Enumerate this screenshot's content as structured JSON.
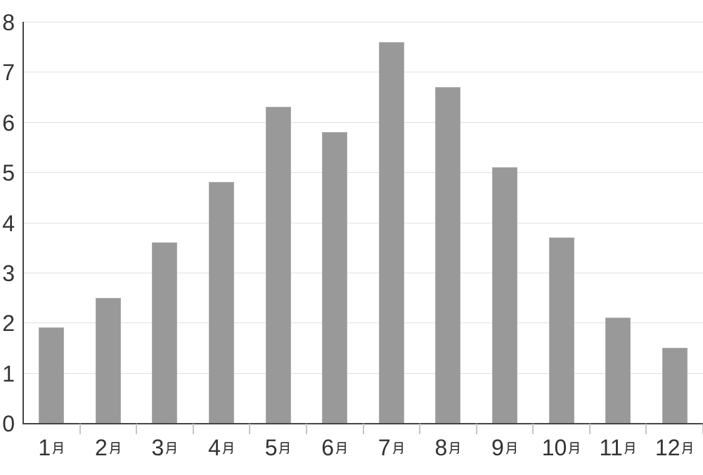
{
  "chart_data": {
    "type": "bar",
    "categories": [
      "1月",
      "2月",
      "3月",
      "4月",
      "5月",
      "6月",
      "7月",
      "8月",
      "9月",
      "10月",
      "11月",
      "12月"
    ],
    "values": [
      1.9,
      2.5,
      3.6,
      4.8,
      6.3,
      5.8,
      7.6,
      6.7,
      5.1,
      3.7,
      2.1,
      1.5
    ],
    "title": "",
    "xlabel": "",
    "ylabel": "",
    "ylim": [
      0,
      8
    ],
    "y_ticks": [
      0,
      1,
      2,
      3,
      4,
      5,
      6,
      7,
      8
    ],
    "y_tick_labels": [
      "0",
      "1",
      "2",
      "3",
      "4",
      "5",
      "6",
      "7",
      "8"
    ],
    "grid": "horizontal",
    "legend_position": "none",
    "colors": {
      "bar_fill": "#999999",
      "bar_border": "#ababab",
      "axis_line": "#444444",
      "gridline": "#e0e0e0",
      "tick_mark": "#c6c6c6",
      "tick_label": "#333333",
      "background": "#ffffff"
    }
  }
}
